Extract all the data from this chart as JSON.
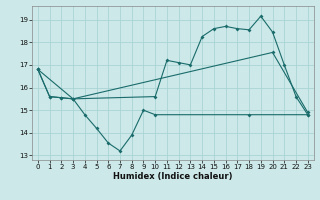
{
  "xlabel": "Humidex (Indice chaleur)",
  "background_color": "#cce8e8",
  "grid_color": "#aad4d4",
  "line_color": "#1a6b6b",
  "xlim": [
    -0.5,
    23.5
  ],
  "ylim": [
    12.8,
    19.6
  ],
  "yticks": [
    13,
    14,
    15,
    16,
    17,
    18,
    19
  ],
  "xticks": [
    0,
    1,
    2,
    3,
    4,
    5,
    6,
    7,
    8,
    9,
    10,
    11,
    12,
    13,
    14,
    15,
    16,
    17,
    18,
    19,
    20,
    21,
    22,
    23
  ],
  "line1_x": [
    0,
    1,
    2,
    3,
    10,
    11,
    12,
    13,
    14,
    15,
    16,
    17,
    18,
    19,
    20,
    21,
    22,
    23
  ],
  "line1_y": [
    16.8,
    15.6,
    15.55,
    15.5,
    15.6,
    17.2,
    17.1,
    17.0,
    18.25,
    18.6,
    18.7,
    18.6,
    18.55,
    19.15,
    18.45,
    17.0,
    15.6,
    14.8
  ],
  "line2_x": [
    0,
    1,
    2,
    3,
    20,
    23
  ],
  "line2_y": [
    16.8,
    15.6,
    15.55,
    15.5,
    17.55,
    14.9
  ],
  "line3_x": [
    0,
    3,
    4,
    5,
    6,
    7,
    8,
    9,
    10,
    18,
    23
  ],
  "line3_y": [
    16.8,
    15.5,
    14.8,
    14.2,
    13.55,
    13.2,
    13.9,
    15.0,
    14.8,
    14.8,
    14.8
  ]
}
